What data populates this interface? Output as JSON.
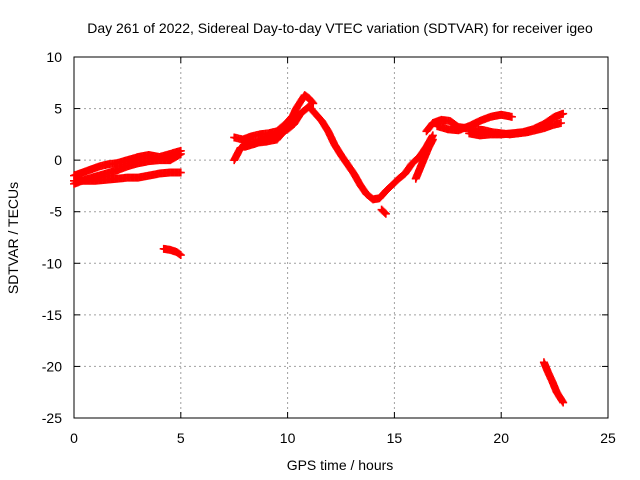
{
  "chart_data": {
    "type": "scatter",
    "title": "Day 261 of 2022, Sidereal Day-to-day VTEC variation (SDTVAR) for receiver igeo",
    "xlabel": "GPS time / hours",
    "ylabel": "SDTVAR / TECUs",
    "xlim": [
      0,
      25
    ],
    "ylim": [
      -25,
      10
    ],
    "xticks": [
      0,
      5,
      10,
      15,
      20,
      25
    ],
    "yticks": [
      -25,
      -20,
      -15,
      -10,
      -5,
      0,
      5,
      10
    ],
    "grid": true,
    "marker": "plus",
    "series": [
      {
        "name": "SDTVAR",
        "color": "#ff0000",
        "segments": [
          {
            "points": [
              [
                0.0,
                -2.3
              ],
              [
                0.5,
                -1.9
              ],
              [
                1.0,
                -1.6
              ],
              [
                1.5,
                -1.3
              ],
              [
                2.0,
                -1.0
              ],
              [
                2.5,
                -0.6
              ],
              [
                3.0,
                -0.3
              ],
              [
                3.5,
                -0.1
              ],
              [
                4.0,
                0.0
              ],
              [
                4.5,
                0.0
              ],
              [
                5.0,
                0.6
              ]
            ]
          },
          {
            "points": [
              [
                0.0,
                -1.5
              ],
              [
                0.4,
                -1.2
              ],
              [
                0.8,
                -0.9
              ],
              [
                1.2,
                -0.6
              ],
              [
                1.6,
                -0.4
              ],
              [
                2.0,
                -0.3
              ],
              [
                2.5,
                0.0
              ],
              [
                3.0,
                0.3
              ],
              [
                3.5,
                0.5
              ],
              [
                4.0,
                0.3
              ],
              [
                4.5,
                0.6
              ],
              [
                5.0,
                0.9
              ]
            ]
          },
          {
            "points": [
              [
                0.0,
                -2.0
              ],
              [
                0.5,
                -2.0
              ],
              [
                1.0,
                -2.0
              ],
              [
                1.5,
                -1.9
              ],
              [
                2.0,
                -1.8
              ],
              [
                2.5,
                -1.7
              ],
              [
                3.0,
                -1.7
              ],
              [
                3.5,
                -1.5
              ],
              [
                4.0,
                -1.3
              ],
              [
                4.5,
                -1.2
              ],
              [
                5.0,
                -1.2
              ]
            ]
          },
          {
            "points": [
              [
                4.2,
                -8.6
              ],
              [
                4.5,
                -8.7
              ],
              [
                4.8,
                -8.9
              ],
              [
                5.0,
                -9.2
              ]
            ]
          },
          {
            "points": [
              [
                7.5,
                0.0
              ],
              [
                7.8,
                1.2
              ],
              [
                8.2,
                1.6
              ],
              [
                8.6,
                1.7
              ],
              [
                9.0,
                1.8
              ],
              [
                9.5,
                2.0
              ],
              [
                10.0,
                3.2
              ],
              [
                10.4,
                5.0
              ],
              [
                10.8,
                6.3
              ],
              [
                11.0,
                6.0
              ],
              [
                11.2,
                5.5
              ]
            ]
          },
          {
            "points": [
              [
                7.5,
                2.2
              ],
              [
                7.9,
                2.0
              ],
              [
                8.3,
                2.3
              ],
              [
                8.7,
                2.5
              ],
              [
                9.1,
                2.6
              ],
              [
                9.5,
                2.8
              ],
              [
                9.9,
                3.5
              ],
              [
                10.2,
                4.2
              ]
            ]
          },
          {
            "points": [
              [
                8.0,
                1.3
              ],
              [
                8.5,
                1.6
              ],
              [
                9.0,
                2.1
              ],
              [
                9.5,
                2.4
              ],
              [
                10.0,
                3.0
              ],
              [
                10.3,
                3.5
              ],
              [
                10.6,
                4.5
              ],
              [
                11.0,
                5.2
              ],
              [
                11.3,
                4.5
              ],
              [
                11.6,
                3.8
              ],
              [
                11.9,
                2.8
              ],
              [
                12.2,
                1.5
              ],
              [
                12.5,
                0.5
              ],
              [
                12.8,
                -0.4
              ],
              [
                13.1,
                -1.3
              ],
              [
                13.4,
                -2.4
              ],
              [
                13.7,
                -3.3
              ],
              [
                14.0,
                -3.8
              ],
              [
                14.3,
                -3.7
              ],
              [
                14.6,
                -3.0
              ],
              [
                14.9,
                -2.4
              ],
              [
                15.2,
                -1.8
              ],
              [
                15.5,
                -1.3
              ],
              [
                15.8,
                -0.4
              ],
              [
                16.2,
                0.4
              ],
              [
                16.5,
                1.3
              ],
              [
                16.8,
                2.4
              ]
            ]
          },
          {
            "points": [
              [
                14.4,
                -4.8
              ],
              [
                14.6,
                -5.2
              ]
            ]
          },
          {
            "points": [
              [
                16.0,
                -1.8
              ],
              [
                16.3,
                -0.3
              ],
              [
                16.6,
                1.2
              ],
              [
                16.8,
                2.0
              ]
            ]
          },
          {
            "points": [
              [
                16.5,
                2.8
              ],
              [
                16.8,
                3.6
              ],
              [
                17.2,
                3.9
              ],
              [
                17.6,
                3.8
              ],
              [
                18.0,
                3.2
              ],
              [
                18.4,
                3.1
              ],
              [
                18.8,
                3.0
              ],
              [
                19.2,
                2.9
              ],
              [
                19.6,
                2.7
              ],
              [
                20.0,
                2.6
              ],
              [
                20.4,
                2.5
              ],
              [
                20.8,
                2.6
              ],
              [
                21.2,
                2.7
              ],
              [
                21.6,
                2.9
              ],
              [
                22.0,
                3.1
              ],
              [
                22.4,
                3.4
              ],
              [
                22.8,
                3.6
              ]
            ]
          },
          {
            "points": [
              [
                17.0,
                3.3
              ],
              [
                17.5,
                3.0
              ],
              [
                18.0,
                2.9
              ],
              [
                18.5,
                3.3
              ],
              [
                19.0,
                3.8
              ],
              [
                19.5,
                4.2
              ],
              [
                20.0,
                4.4
              ],
              [
                20.5,
                4.2
              ]
            ]
          },
          {
            "points": [
              [
                18.5,
                2.6
              ],
              [
                19.0,
                2.4
              ],
              [
                19.5,
                2.5
              ],
              [
                20.0,
                2.5
              ],
              [
                20.5,
                2.6
              ],
              [
                21.0,
                2.7
              ],
              [
                21.5,
                3.0
              ],
              [
                22.0,
                3.5
              ],
              [
                22.5,
                4.2
              ],
              [
                22.9,
                4.5
              ]
            ]
          },
          {
            "points": [
              [
                22.0,
                -19.6
              ],
              [
                22.2,
                -20.6
              ],
              [
                22.4,
                -21.5
              ],
              [
                22.6,
                -22.5
              ],
              [
                22.9,
                -23.5
              ]
            ]
          }
        ]
      }
    ]
  }
}
